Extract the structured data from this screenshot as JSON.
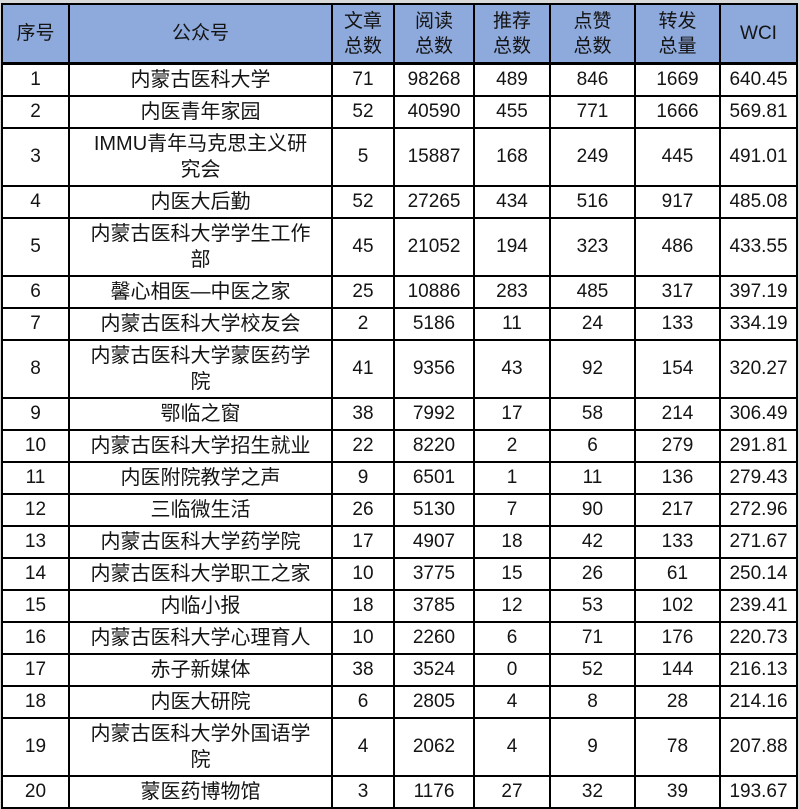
{
  "colors": {
    "header_bg": "#8EA9DB",
    "body_bg": "#FFFFFF",
    "page_bg": "#D9D9D9",
    "border": "#000000",
    "text": "#141414"
  },
  "table": {
    "header": {
      "columns": [
        {
          "key": "index",
          "label": "序号"
        },
        {
          "key": "account",
          "label": "公众号"
        },
        {
          "key": "articles",
          "label": "文章\n总数"
        },
        {
          "key": "reads",
          "label": "阅读\n总数"
        },
        {
          "key": "recommends",
          "label": "推荐\n总数"
        },
        {
          "key": "likes",
          "label": "点赞\n总数"
        },
        {
          "key": "forwards",
          "label": "转发\n总量"
        },
        {
          "key": "wci",
          "label": "WCI"
        }
      ]
    },
    "rows": [
      {
        "index": "1",
        "account": "内蒙古医科大学",
        "articles": "71",
        "reads": "98268",
        "recommends": "489",
        "likes": "846",
        "forwards": "1669",
        "wci": "640.45"
      },
      {
        "index": "2",
        "account": "内医青年家园",
        "articles": "52",
        "reads": "40590",
        "recommends": "455",
        "likes": "771",
        "forwards": "1666",
        "wci": "569.81"
      },
      {
        "index": "3",
        "account": "IMMU青年马克思主义研究会",
        "articles": "5",
        "reads": "15887",
        "recommends": "168",
        "likes": "249",
        "forwards": "445",
        "wci": "491.01"
      },
      {
        "index": "4",
        "account": "内医大后勤",
        "articles": "52",
        "reads": "27265",
        "recommends": "434",
        "likes": "516",
        "forwards": "917",
        "wci": "485.08"
      },
      {
        "index": "5",
        "account": "内蒙古医科大学学生工作部",
        "articles": "45",
        "reads": "21052",
        "recommends": "194",
        "likes": "323",
        "forwards": "486",
        "wci": "433.55"
      },
      {
        "index": "6",
        "account": "馨心相医—中医之家",
        "articles": "25",
        "reads": "10886",
        "recommends": "283",
        "likes": "485",
        "forwards": "317",
        "wci": "397.19"
      },
      {
        "index": "7",
        "account": "内蒙古医科大学校友会",
        "articles": "2",
        "reads": "5186",
        "recommends": "11",
        "likes": "24",
        "forwards": "133",
        "wci": "334.19"
      },
      {
        "index": "8",
        "account": "内蒙古医科大学蒙医药学院",
        "articles": "41",
        "reads": "9356",
        "recommends": "43",
        "likes": "92",
        "forwards": "154",
        "wci": "320.27"
      },
      {
        "index": "9",
        "account": "鄂临之窗",
        "articles": "38",
        "reads": "7992",
        "recommends": "17",
        "likes": "58",
        "forwards": "214",
        "wci": "306.49"
      },
      {
        "index": "10",
        "account": "内蒙古医科大学招生就业",
        "articles": "22",
        "reads": "8220",
        "recommends": "2",
        "likes": "6",
        "forwards": "279",
        "wci": "291.81"
      },
      {
        "index": "11",
        "account": "内医附院教学之声",
        "articles": "9",
        "reads": "6501",
        "recommends": "1",
        "likes": "11",
        "forwards": "136",
        "wci": "279.43"
      },
      {
        "index": "12",
        "account": "三临微生活",
        "articles": "26",
        "reads": "5130",
        "recommends": "7",
        "likes": "90",
        "forwards": "217",
        "wci": "272.96"
      },
      {
        "index": "13",
        "account": "内蒙古医科大学药学院",
        "articles": "17",
        "reads": "4907",
        "recommends": "18",
        "likes": "42",
        "forwards": "133",
        "wci": "271.67"
      },
      {
        "index": "14",
        "account": "内蒙古医科大学职工之家",
        "articles": "10",
        "reads": "3775",
        "recommends": "15",
        "likes": "26",
        "forwards": "61",
        "wci": "250.14"
      },
      {
        "index": "15",
        "account": "内临小报",
        "articles": "18",
        "reads": "3785",
        "recommends": "12",
        "likes": "53",
        "forwards": "102",
        "wci": "239.41"
      },
      {
        "index": "16",
        "account": "内蒙古医科大学心理育人",
        "articles": "10",
        "reads": "2260",
        "recommends": "6",
        "likes": "71",
        "forwards": "176",
        "wci": "220.73"
      },
      {
        "index": "17",
        "account": "赤子新媒体",
        "articles": "38",
        "reads": "3524",
        "recommends": "0",
        "likes": "52",
        "forwards": "144",
        "wci": "216.13"
      },
      {
        "index": "18",
        "account": "内医大研院",
        "articles": "6",
        "reads": "2805",
        "recommends": "4",
        "likes": "8",
        "forwards": "28",
        "wci": "214.16"
      },
      {
        "index": "19",
        "account": "内蒙古医科大学外国语学院",
        "articles": "4",
        "reads": "2062",
        "recommends": "4",
        "likes": "9",
        "forwards": "78",
        "wci": "207.88"
      },
      {
        "index": "20",
        "account": "蒙医药博物馆",
        "articles": "3",
        "reads": "1176",
        "recommends": "27",
        "likes": "32",
        "forwards": "39",
        "wci": "193.67"
      }
    ]
  },
  "chart_data": {
    "type": "table",
    "columns": [
      "序号",
      "公众号",
      "文章总数",
      "阅读总数",
      "推荐总数",
      "点赞总数",
      "转发总量",
      "WCI"
    ],
    "rows": [
      [
        1,
        "内蒙古医科大学",
        71,
        98268,
        489,
        846,
        1669,
        640.45
      ],
      [
        2,
        "内医青年家园",
        52,
        40590,
        455,
        771,
        1666,
        569.81
      ],
      [
        3,
        "IMMU青年马克思主义研究会",
        5,
        15887,
        168,
        249,
        445,
        491.01
      ],
      [
        4,
        "内医大后勤",
        52,
        27265,
        434,
        516,
        917,
        485.08
      ],
      [
        5,
        "内蒙古医科大学学生工作部",
        45,
        21052,
        194,
        323,
        486,
        433.55
      ],
      [
        6,
        "馨心相医—中医之家",
        25,
        10886,
        283,
        485,
        317,
        397.19
      ],
      [
        7,
        "内蒙古医科大学校友会",
        2,
        5186,
        11,
        24,
        133,
        334.19
      ],
      [
        8,
        "内蒙古医科大学蒙医药学院",
        41,
        9356,
        43,
        92,
        154,
        320.27
      ],
      [
        9,
        "鄂临之窗",
        38,
        7992,
        17,
        58,
        214,
        306.49
      ],
      [
        10,
        "内蒙古医科大学招生就业",
        22,
        8220,
        2,
        6,
        279,
        291.81
      ],
      [
        11,
        "内医附院教学之声",
        9,
        6501,
        1,
        11,
        136,
        279.43
      ],
      [
        12,
        "三临微生活",
        26,
        5130,
        7,
        90,
        217,
        272.96
      ],
      [
        13,
        "内蒙古医科大学药学院",
        17,
        4907,
        18,
        42,
        133,
        271.67
      ],
      [
        14,
        "内蒙古医科大学职工之家",
        10,
        3775,
        15,
        26,
        61,
        250.14
      ],
      [
        15,
        "内临小报",
        18,
        3785,
        12,
        53,
        102,
        239.41
      ],
      [
        16,
        "内蒙古医科大学心理育人",
        10,
        2260,
        6,
        71,
        176,
        220.73
      ],
      [
        17,
        "赤子新媒体",
        38,
        3524,
        0,
        52,
        144,
        216.13
      ],
      [
        18,
        "内医大研院",
        6,
        2805,
        4,
        8,
        28,
        214.16
      ],
      [
        19,
        "内蒙古医科大学外国语学院",
        4,
        2062,
        4,
        9,
        78,
        207.88
      ],
      [
        20,
        "蒙医药博物馆",
        3,
        1176,
        27,
        32,
        39,
        193.67
      ]
    ]
  }
}
